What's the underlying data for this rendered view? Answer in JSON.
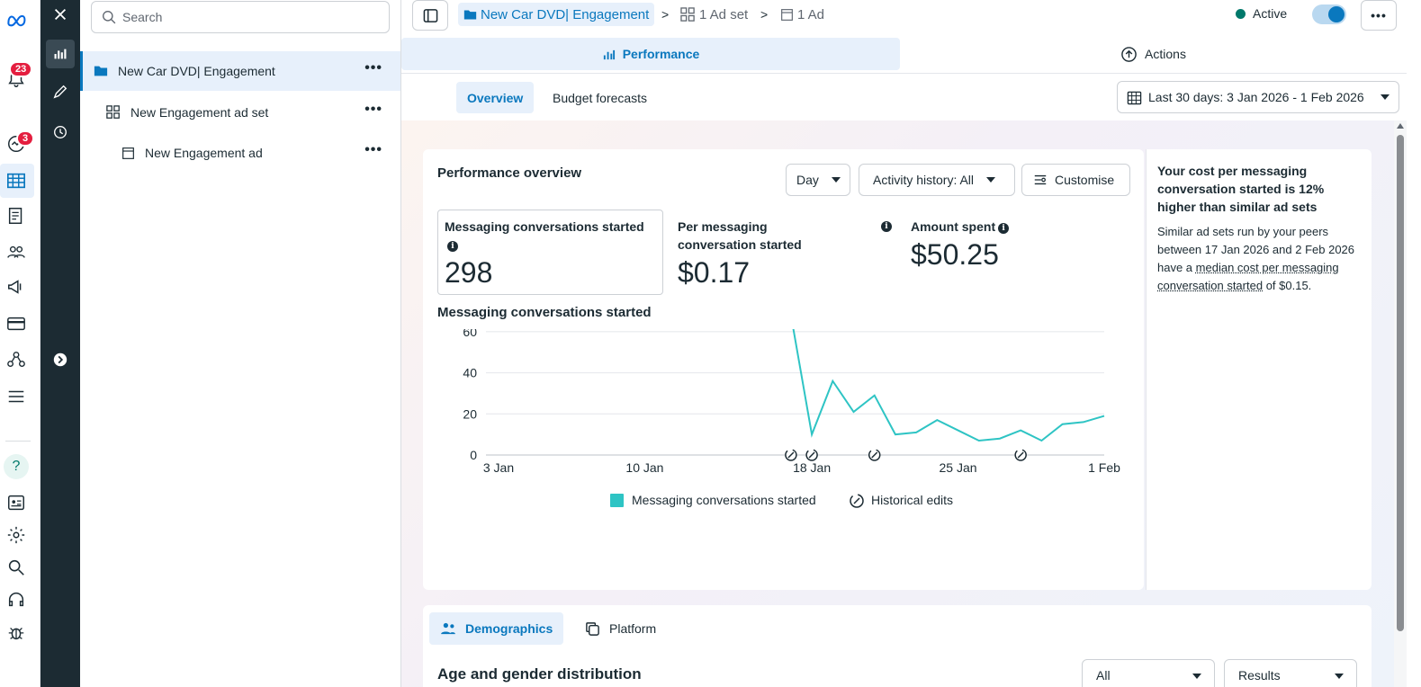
{
  "rail": {
    "notifications_badge": "23",
    "insights_badge": "3"
  },
  "tree": {
    "search_placeholder": "Search",
    "items": [
      {
        "label": "New Car DVD| Engagement"
      },
      {
        "label": "New Engagement ad set"
      },
      {
        "label": "New Engagement ad"
      }
    ]
  },
  "breadcrumb": {
    "campaign": "New Car DVD| Engagement",
    "adset": "1 Ad set",
    "ad": "1 Ad"
  },
  "status": {
    "label": "Active",
    "color": "#00796b",
    "toggle_on": true
  },
  "tabs": {
    "performance": "Performance",
    "actions": "Actions"
  },
  "subtabs": {
    "overview": "Overview",
    "budget": "Budget forecasts"
  },
  "date_range": "Last 30 days: 3 Jan 2026 - 1 Feb 2026",
  "performance": {
    "title": "Performance overview",
    "day_label": "Day",
    "activity_label": "Activity history: All",
    "customise_label": "Customise",
    "metrics": [
      {
        "label": "Messaging conversations started",
        "value": "298"
      },
      {
        "label": "Per messaging conversation started",
        "value": "$0.17"
      },
      {
        "label": "Amount spent",
        "value": "$50.25"
      }
    ],
    "chart_title": "Messaging conversations started"
  },
  "chart_data": {
    "type": "line",
    "x": [
      "17 Jan",
      "18 Jan",
      "19 Jan",
      "20 Jan",
      "21 Jan",
      "22 Jan",
      "23 Jan",
      "24 Jan",
      "25 Jan",
      "26 Jan",
      "27 Jan",
      "28 Jan",
      "29 Jan",
      "30 Jan",
      "31 Jan",
      "1 Feb"
    ],
    "x_ticks": [
      "3 Jan",
      "10 Jan",
      "18 Jan",
      "25 Jan",
      "1 Feb"
    ],
    "y_ticks": [
      "0",
      "20",
      "40",
      "60"
    ],
    "ylim": [
      0,
      70
    ],
    "series": [
      {
        "name": "Messaging conversations started",
        "color": "#2ec4c4",
        "values": [
          68,
          10,
          36,
          21,
          29,
          10,
          11,
          17,
          12,
          7,
          8,
          12,
          7,
          15,
          16,
          19
        ]
      }
    ],
    "historical_edit_dates": [
      "17 Jan",
      "18 Jan",
      "21 Jan",
      "28 Jan"
    ],
    "legend": [
      "Messaging conversations started",
      "Historical edits"
    ],
    "grid": true
  },
  "insight": {
    "headline": "Your cost per messaging conversation started is 12% higher than similar ad sets",
    "body_pre": "Similar ad sets run by your peers between 17 Jan 2026 and 2 Feb 2026 have a ",
    "body_link": "median cost per messaging conversation started",
    "body_post": " of $0.15."
  },
  "demographics": {
    "tab_demographics": "Demographics",
    "tab_platform": "Platform",
    "title": "Age and gender distribution",
    "filter_all": "All",
    "filter_results": "Results"
  }
}
